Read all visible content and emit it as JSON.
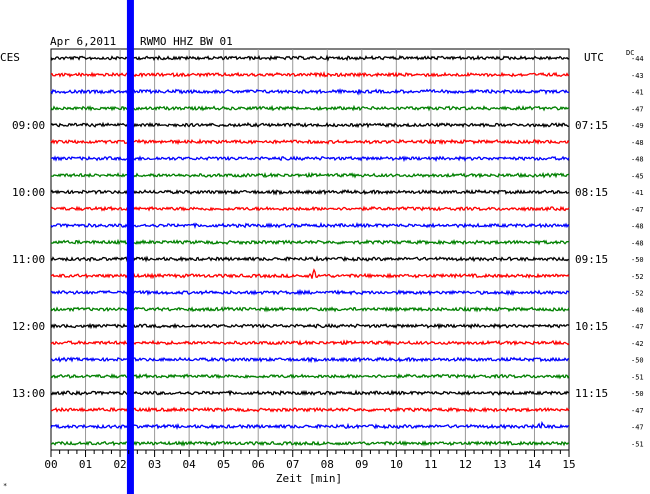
{
  "header": {
    "date": "Apr 6,2011",
    "station": "RWMO HHZ BW 01",
    "left_zone": "CES",
    "right_zone": "UTC",
    "dc_label": "DC"
  },
  "chart_data": {
    "type": "line",
    "title": "Apr 6,2011   RWMO HHZ BW 01",
    "xlabel": "Zeit [min]",
    "x_range": [
      0,
      15
    ],
    "x_ticks": [
      "00",
      "01",
      "02",
      "03",
      "04",
      "05",
      "06",
      "07",
      "08",
      "09",
      "10",
      "11",
      "12",
      "13",
      "14",
      "15"
    ],
    "grid": true,
    "trace_count": 24,
    "trace_colors": [
      "#000000",
      "#ff0000",
      "#0000ff",
      "#008000"
    ],
    "left_time_labels": [
      {
        "trace": 4,
        "label": "09:00"
      },
      {
        "trace": 8,
        "label": "10:00"
      },
      {
        "trace": 12,
        "label": "11:00"
      },
      {
        "trace": 16,
        "label": "12:00"
      },
      {
        "trace": 20,
        "label": "13:00"
      }
    ],
    "right_time_labels": [
      {
        "trace": 4,
        "label": "07:15"
      },
      {
        "trace": 8,
        "label": "08:15"
      },
      {
        "trace": 12,
        "label": "09:15"
      },
      {
        "trace": 16,
        "label": "10:15"
      },
      {
        "trace": 20,
        "label": "11:15"
      }
    ],
    "dc_values": [
      "-44",
      "-43",
      "-41",
      "-47",
      "-49",
      "-48",
      "-48",
      "-45",
      "-41",
      "-47",
      "-48",
      "-48",
      "-50",
      "-52",
      "-52",
      "-48",
      "-47",
      "-42",
      "-50",
      "-51",
      "-50",
      "-47",
      "-47",
      "-51"
    ],
    "events": [
      {
        "trace": 13,
        "minute": 2.3,
        "amplitude": 8
      },
      {
        "trace": 13,
        "minute": 7.6,
        "amplitude": 7
      },
      {
        "trace": 2,
        "minute": 8.9,
        "amplitude": 3
      },
      {
        "trace": 21,
        "minute": 2.25,
        "amplitude": 4
      },
      {
        "trace": 22,
        "minute": 14.2,
        "amplitude": 5
      }
    ],
    "marker_bar": {
      "minute": 2.3,
      "color": "#0000ff"
    }
  },
  "footer": {
    "corner_mark": "*"
  }
}
